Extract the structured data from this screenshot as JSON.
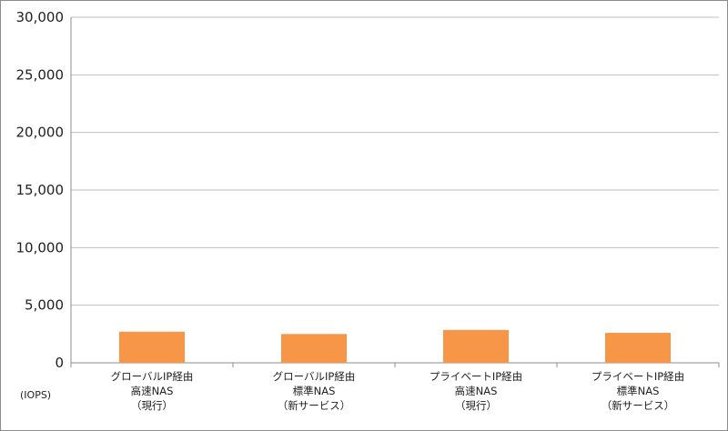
{
  "chart_data": {
    "type": "bar",
    "categories": [
      [
        "グローバルIP経由",
        "高速NAS",
        "（現行）"
      ],
      [
        "グローバルIP経由",
        "標準NAS",
        "（新サービス）"
      ],
      [
        "プライベートIP経由",
        "高速NAS",
        "（現行）"
      ],
      [
        "プライベートIP経由",
        "標準NAS",
        "（新サービス）"
      ]
    ],
    "values": [
      2700,
      2500,
      2850,
      2600
    ],
    "ylim": [
      0,
      30000
    ],
    "yticks": [
      0,
      5000,
      10000,
      15000,
      20000,
      25000,
      30000
    ],
    "ytick_labels": [
      "0",
      "5,000",
      "10,000",
      "15,000",
      "20,000",
      "25,000",
      "30,000"
    ],
    "unit_label": "(IOPS)",
    "grid": true,
    "bar_color": "#F79646",
    "grid_color": "#BFBFBF"
  }
}
